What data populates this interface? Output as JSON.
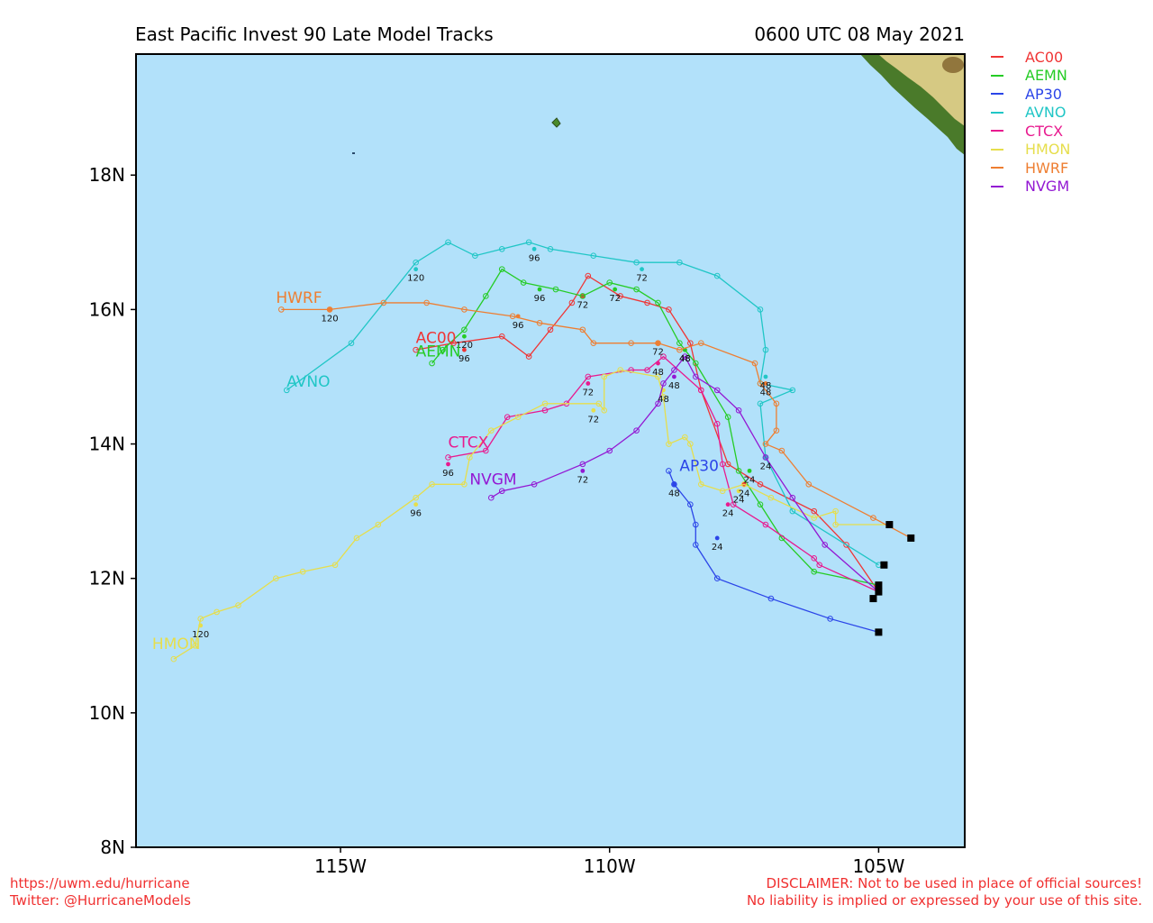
{
  "title": "East Pacific Invest 90 Late Model Tracks",
  "datetime": "0600 UTC 08 May 2021",
  "colors": {
    "ocean": "#b2e1fa",
    "land_dark": "#4a7a2a",
    "land_light": "#d6c983"
  },
  "axes": {
    "lon_ticks": [
      "115W",
      "110W",
      "105W"
    ],
    "lat_ticks": [
      "18N",
      "16N",
      "14N",
      "12N",
      "10N",
      "8N"
    ]
  },
  "chart_data": {
    "type": "map",
    "lon_range": [
      -118.8,
      -103.4
    ],
    "lat_range": [
      8.0,
      19.8
    ],
    "grid": false,
    "legend_position": "right",
    "lon_ticks": [
      -115,
      -110,
      -105
    ],
    "lat_ticks": [
      18,
      16,
      14,
      12,
      10,
      8
    ],
    "series": [
      {
        "name": "AC00",
        "color": "#f03535",
        "points": [
          [
            -105.0,
            11.8
          ],
          [
            -105.6,
            12.5
          ],
          [
            -106.2,
            13.0
          ],
          [
            -107.2,
            13.4
          ],
          [
            -107.8,
            13.7
          ],
          [
            -108.3,
            14.8
          ],
          [
            -108.5,
            15.5
          ],
          [
            -108.9,
            16.0
          ],
          [
            -109.3,
            16.1
          ],
          [
            -109.8,
            16.2
          ],
          [
            -110.4,
            16.5
          ],
          [
            -110.7,
            16.1
          ],
          [
            -111.1,
            15.7
          ],
          [
            -111.5,
            15.3
          ],
          [
            -112.0,
            15.6
          ],
          [
            -112.9,
            15.5
          ],
          [
            -113.6,
            15.4
          ]
        ],
        "label": "AC00",
        "label_at": [
          -113.6,
          15.5
        ],
        "hour_marks": [
          [
            -107.5,
            13.4,
            "24"
          ],
          [
            -108.6,
            15.4,
            "48"
          ],
          [
            -110.5,
            16.2,
            "72"
          ],
          [
            -112.7,
            15.4,
            "96"
          ]
        ]
      },
      {
        "name": "AEMN",
        "color": "#25cc25",
        "points": [
          [
            -105.0,
            11.9
          ],
          [
            -106.2,
            12.1
          ],
          [
            -106.8,
            12.6
          ],
          [
            -107.2,
            13.1
          ],
          [
            -107.6,
            13.6
          ],
          [
            -107.8,
            14.4
          ],
          [
            -108.4,
            15.2
          ],
          [
            -108.7,
            15.5
          ],
          [
            -109.1,
            16.1
          ],
          [
            -109.5,
            16.3
          ],
          [
            -110.0,
            16.4
          ],
          [
            -110.5,
            16.2
          ],
          [
            -111.0,
            16.3
          ],
          [
            -111.6,
            16.4
          ],
          [
            -112.0,
            16.6
          ],
          [
            -112.3,
            16.2
          ],
          [
            -112.7,
            15.7
          ],
          [
            -113.1,
            15.4
          ],
          [
            -113.3,
            15.2
          ]
        ],
        "label": "AEMN",
        "label_at": [
          -113.6,
          15.3
        ],
        "hour_marks": [
          [
            -107.4,
            13.6,
            "24"
          ],
          [
            -108.6,
            15.4,
            "48"
          ],
          [
            -109.9,
            16.3,
            "72"
          ],
          [
            -111.3,
            16.3,
            "96"
          ],
          [
            -112.7,
            15.6,
            "120"
          ]
        ]
      },
      {
        "name": "AP30",
        "color": "#2b45e8",
        "points": [
          [
            -105.0,
            11.2
          ],
          [
            -105.9,
            11.4
          ],
          [
            -107.0,
            11.7
          ],
          [
            -108.0,
            12.0
          ],
          [
            -108.4,
            12.5
          ],
          [
            -108.4,
            12.8
          ],
          [
            -108.5,
            13.1
          ],
          [
            -108.8,
            13.4
          ],
          [
            -108.9,
            13.6
          ]
        ],
        "label": "AP30",
        "label_at": [
          -108.7,
          13.6
        ],
        "hour_marks": [
          [
            -108.0,
            12.6,
            "24"
          ],
          [
            -108.8,
            13.4,
            "48"
          ]
        ]
      },
      {
        "name": "AVNO",
        "color": "#20c6c6",
        "points": [
          [
            -105.0,
            12.2
          ],
          [
            -106.6,
            13.0
          ],
          [
            -107.1,
            13.8
          ],
          [
            -107.2,
            14.6
          ],
          [
            -106.6,
            14.8
          ],
          [
            -107.2,
            14.9
          ],
          [
            -107.1,
            15.4
          ],
          [
            -107.2,
            16.0
          ],
          [
            -108.0,
            16.5
          ],
          [
            -108.7,
            16.7
          ],
          [
            -109.5,
            16.7
          ],
          [
            -110.3,
            16.8
          ],
          [
            -111.1,
            16.9
          ],
          [
            -111.5,
            17.0
          ],
          [
            -112.0,
            16.9
          ],
          [
            -112.5,
            16.8
          ],
          [
            -113.0,
            17.0
          ],
          [
            -113.6,
            16.7
          ],
          [
            -114.8,
            15.5
          ],
          [
            -116.0,
            14.8
          ]
        ],
        "label": "AVNO",
        "label_at": [
          -116.0,
          14.85
        ],
        "hour_marks": [
          [
            -107.1,
            13.8,
            "24"
          ],
          [
            -107.1,
            15.0,
            "48"
          ],
          [
            -109.4,
            16.6,
            "72"
          ],
          [
            -111.4,
            16.9,
            "96"
          ],
          [
            -113.6,
            16.6,
            "120"
          ]
        ]
      },
      {
        "name": "CTCX",
        "color": "#e81a8f",
        "points": [
          [
            -105.0,
            11.8
          ],
          [
            -106.1,
            12.2
          ],
          [
            -106.2,
            12.3
          ],
          [
            -107.1,
            12.8
          ],
          [
            -107.7,
            13.1
          ],
          [
            -107.9,
            13.7
          ],
          [
            -108.0,
            14.3
          ],
          [
            -108.3,
            14.8
          ],
          [
            -109.0,
            15.3
          ],
          [
            -109.3,
            15.1
          ],
          [
            -109.6,
            15.1
          ],
          [
            -110.4,
            15.0
          ],
          [
            -110.8,
            14.6
          ],
          [
            -111.2,
            14.5
          ],
          [
            -111.9,
            14.4
          ],
          [
            -112.3,
            13.9
          ],
          [
            -113.0,
            13.8
          ]
        ],
        "label": "CTCX",
        "label_at": [
          -113.0,
          13.95
        ],
        "hour_marks": [
          [
            -107.8,
            13.1,
            "24"
          ],
          [
            -109.1,
            15.2,
            "48"
          ],
          [
            -110.4,
            14.9,
            "72"
          ],
          [
            -113.0,
            13.7,
            "96"
          ]
        ]
      },
      {
        "name": "HMON",
        "color": "#e6de4c",
        "points": [
          [
            -104.8,
            12.8
          ],
          [
            -105.8,
            12.8
          ],
          [
            -105.8,
            13.0
          ],
          [
            -106.2,
            12.9
          ],
          [
            -107.0,
            13.2
          ],
          [
            -107.5,
            13.4
          ],
          [
            -107.9,
            13.3
          ],
          [
            -108.3,
            13.4
          ],
          [
            -108.5,
            14.0
          ],
          [
            -108.6,
            14.1
          ],
          [
            -108.9,
            14.0
          ],
          [
            -109.0,
            14.7
          ],
          [
            -109.1,
            15.0
          ],
          [
            -109.8,
            15.1
          ],
          [
            -110.1,
            15.0
          ],
          [
            -110.1,
            14.5
          ],
          [
            -110.2,
            14.6
          ],
          [
            -111.2,
            14.6
          ],
          [
            -111.7,
            14.4
          ],
          [
            -112.2,
            14.2
          ],
          [
            -112.6,
            13.8
          ],
          [
            -112.7,
            13.4
          ],
          [
            -113.3,
            13.4
          ],
          [
            -113.6,
            13.2
          ],
          [
            -114.3,
            12.8
          ],
          [
            -114.7,
            12.6
          ],
          [
            -115.1,
            12.2
          ],
          [
            -115.7,
            12.1
          ],
          [
            -116.2,
            12.0
          ],
          [
            -116.9,
            11.6
          ],
          [
            -117.3,
            11.5
          ],
          [
            -117.6,
            11.4
          ],
          [
            -117.7,
            11.0
          ],
          [
            -118.1,
            10.8
          ]
        ],
        "label": "HMON",
        "label_at": [
          -118.5,
          10.95
        ],
        "hour_marks": [
          [
            -107.6,
            13.3,
            "24"
          ],
          [
            -109.0,
            14.8,
            "48"
          ],
          [
            -110.3,
            14.5,
            "72"
          ],
          [
            -113.6,
            13.1,
            "96"
          ],
          [
            -117.6,
            11.3,
            "120"
          ]
        ]
      },
      {
        "name": "HWRF",
        "color": "#ee7e31",
        "points": [
          [
            -104.4,
            12.6
          ],
          [
            -105.1,
            12.9
          ],
          [
            -106.3,
            13.4
          ],
          [
            -106.8,
            13.9
          ],
          [
            -107.1,
            14.0
          ],
          [
            -106.9,
            14.2
          ],
          [
            -106.9,
            14.6
          ],
          [
            -107.2,
            14.9
          ],
          [
            -107.3,
            15.2
          ],
          [
            -108.3,
            15.5
          ],
          [
            -108.7,
            15.4
          ],
          [
            -109.1,
            15.5
          ],
          [
            -109.6,
            15.5
          ],
          [
            -110.3,
            15.5
          ],
          [
            -110.5,
            15.7
          ],
          [
            -111.3,
            15.8
          ],
          [
            -111.8,
            15.9
          ],
          [
            -112.7,
            16.0
          ],
          [
            -113.4,
            16.1
          ],
          [
            -114.2,
            16.1
          ],
          [
            -115.2,
            16.0
          ],
          [
            -116.1,
            16.0
          ]
        ],
        "label": "HWRF",
        "label_at": [
          -116.2,
          16.1
        ],
        "hour_marks": [
          [
            -107.1,
            14.9,
            "48"
          ],
          [
            -109.1,
            15.5,
            "72"
          ],
          [
            -111.7,
            15.9,
            "96"
          ],
          [
            -115.2,
            16.0,
            "120"
          ]
        ]
      },
      {
        "name": "NVGM",
        "color": "#9318d3",
        "points": [
          [
            -105.0,
            11.8
          ],
          [
            -106.0,
            12.5
          ],
          [
            -106.6,
            13.2
          ],
          [
            -107.1,
            13.8
          ],
          [
            -107.6,
            14.5
          ],
          [
            -108.0,
            14.8
          ],
          [
            -108.4,
            15.0
          ],
          [
            -108.6,
            15.3
          ],
          [
            -108.8,
            15.1
          ],
          [
            -109.0,
            14.9
          ],
          [
            -109.1,
            14.6
          ],
          [
            -109.5,
            14.2
          ],
          [
            -110.0,
            13.9
          ],
          [
            -110.5,
            13.7
          ],
          [
            -111.4,
            13.4
          ],
          [
            -112.0,
            13.3
          ],
          [
            -112.2,
            13.2
          ]
        ],
        "label": "NVGM",
        "label_at": [
          -112.6,
          13.4
        ],
        "hour_marks": [
          [
            -108.8,
            15.0,
            "48"
          ],
          [
            -110.5,
            13.6,
            "72"
          ]
        ]
      }
    ],
    "start_markers": [
      [
        -104.8,
        12.8
      ],
      [
        -104.4,
        12.6
      ],
      [
        -104.9,
        12.2
      ],
      [
        -105.0,
        11.9
      ],
      [
        -105.0,
        11.8
      ],
      [
        -105.1,
        11.7
      ],
      [
        -105.0,
        11.2
      ]
    ]
  },
  "footer": {
    "left_line1": "https://uwm.edu/hurricane",
    "left_line2": "Twitter: @HurricaneModels",
    "right_line1": "DISCLAIMER: Not to be used in place of official sources!",
    "right_line2": "No liability is implied or expressed by your use of this site."
  }
}
